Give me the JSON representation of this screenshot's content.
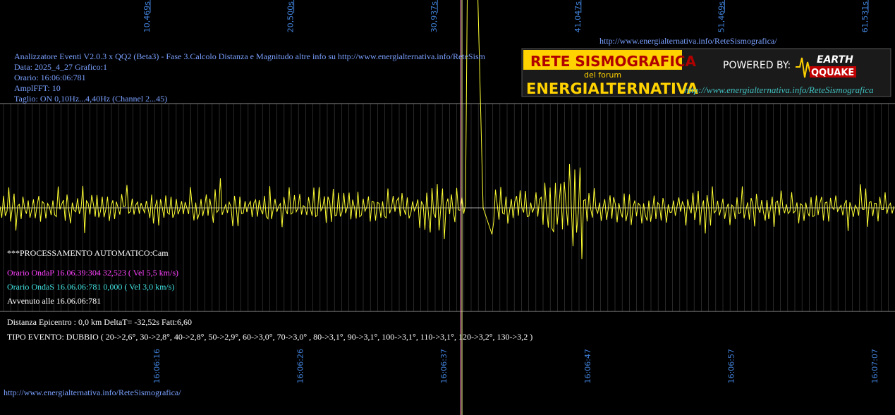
{
  "header": {
    "url_top": "http://www.energialternativa.info/ReteSismografica/",
    "lines": [
      "Analizzatore Eventi V2.0.3 x QQ2 (Beta3) - Fase 3.Calcolo Distanza e Magnitudo altre info su http://www.energialternativa.info/ReteSism",
      "Data: 2025_4_27 Grafico:1",
      "Orario: 16:06:06:781",
      "AmplFFT: 10",
      "Taglio: ON 0,10Hz...4,40Hz      (Channel 2...45)"
    ]
  },
  "time_axis": {
    "top_labels": [
      "10,469s",
      "20,500s",
      "30,937s",
      "41,047s",
      "51,469s",
      "61,531s"
    ],
    "bottom_labels": [
      "16:06:16",
      "16:06:26",
      "16:06:37",
      "16:06:47",
      "16:06:57",
      "16:07:07"
    ]
  },
  "logo": {
    "title": "RETE SISMOGRAFICA",
    "subtitle": "del forum",
    "brand": "ENERGIALTERNATIVA",
    "powered": "POWERED BY:",
    "earth": "EARTH",
    "quake": "QQUAKE",
    "url": "http://www.energialternativa.info/ReteSismografica"
  },
  "processing": {
    "mode": "***PROCESSAMENTO AUTOMATICO:Cam",
    "onda_p": "Orario OndaP 16.06.39:304  32,523 ( Vel 5,5 km/s)",
    "onda_s": "Orario OndaS 16.06.06:781  0,000 ( Vel 3,0 km/s)",
    "avvenuto": "Avvenuto alle 16.06.06:781",
    "distanza": "Distanza Epicentro : 0,0 km DeltaT= -32,52s  Fatt:6,60",
    "tipo": "TIPO EVENTO: DUBBIO ( 20->2,6°, 30->2,8°, 40->2,8°, 50->2,9°, 60->3,0°, 70->3,0° , 80->3,1°, 90->3,1°, 100->3,1°, 110->3,1°, 120->3,2°, 130->3,2 )"
  },
  "footer_url": "http://www.energialternativa.info/ReteSismografica/"
}
